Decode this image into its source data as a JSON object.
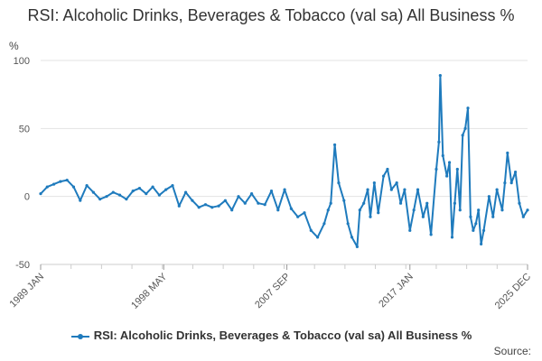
{
  "title": "RSI: Alcoholic Drinks, Beverages & Tobacco (val sa) All Business %",
  "unit_label": "%",
  "legend_label": "RSI: Alcoholic Drinks, Beverages & Tobacco (val sa) All Business %",
  "source_label": "Source:",
  "colors": {
    "series": "#1f7bbd",
    "grid": "#e3e3e3",
    "axis": "#cccccc",
    "tick_text": "#555555"
  },
  "chart_data": {
    "type": "line",
    "title": "RSI: Alcoholic Drinks, Beverages & Tobacco (val sa) All Business %",
    "ylabel": "%",
    "xlim": [
      1989.0,
      2025.92
    ],
    "ylim": [
      -50,
      100
    ],
    "y_ticks": [
      100,
      50,
      0,
      -50
    ],
    "x_ticks": [
      {
        "label": "1989 JAN",
        "x": 1989.0
      },
      {
        "label": "1998 MAY",
        "x": 1998.33
      },
      {
        "label": "2007 SEP",
        "x": 2007.67
      },
      {
        "label": "2017 JAN",
        "x": 2017.0
      },
      {
        "label": "2025 DEC",
        "x": 2025.92
      }
    ],
    "grid": true,
    "legend_position": "bottom",
    "series": [
      {
        "name": "RSI: Alcoholic Drinks, Beverages & Tobacco (val sa) All Business %",
        "x": [
          1989.0,
          1989.5,
          1990.0,
          1990.5,
          1991.0,
          1991.5,
          1992.0,
          1992.5,
          1993.0,
          1993.5,
          1994.0,
          1994.5,
          1995.0,
          1995.5,
          1996.0,
          1996.5,
          1997.0,
          1997.5,
          1998.0,
          1998.5,
          1999.0,
          1999.5,
          2000.0,
          2000.5,
          2001.0,
          2001.5,
          2002.0,
          2002.5,
          2003.0,
          2003.5,
          2004.0,
          2004.5,
          2005.0,
          2005.5,
          2006.0,
          2006.5,
          2007.0,
          2007.5,
          2008.0,
          2008.5,
          2009.0,
          2009.5,
          2010.0,
          2010.5,
          2010.8,
          2011.0,
          2011.3,
          2011.6,
          2012.0,
          2012.3,
          2012.6,
          2013.0,
          2013.2,
          2013.5,
          2013.8,
          2014.0,
          2014.3,
          2014.6,
          2015.0,
          2015.3,
          2015.6,
          2016.0,
          2016.3,
          2016.6,
          2017.0,
          2017.3,
          2017.6,
          2018.0,
          2018.3,
          2018.6,
          2019.0,
          2019.2,
          2019.3,
          2019.5,
          2019.8,
          2020.0,
          2020.2,
          2020.4,
          2020.6,
          2020.8,
          2021.0,
          2021.2,
          2021.4,
          2021.6,
          2021.8,
          2022.0,
          2022.2,
          2022.4,
          2022.6,
          2023.0,
          2023.3,
          2023.6,
          2024.0,
          2024.2,
          2024.4,
          2024.7,
          2025.0,
          2025.3,
          2025.6,
          2025.92
        ],
        "y": [
          2,
          7,
          9,
          11,
          12,
          7,
          -3,
          8,
          3,
          -2,
          0,
          3,
          1,
          -2,
          4,
          6,
          2,
          7,
          1,
          5,
          8,
          -7,
          3,
          -3,
          -8,
          -6,
          -8,
          -7,
          -3,
          -10,
          0,
          -5,
          2,
          -5,
          -6,
          4,
          -10,
          5,
          -9,
          -15,
          -12,
          -25,
          -30,
          -20,
          -10,
          -5,
          38,
          10,
          -3,
          -20,
          -30,
          -37,
          -10,
          -5,
          5,
          -15,
          10,
          -12,
          15,
          20,
          5,
          10,
          -5,
          5,
          -25,
          -10,
          5,
          -15,
          -5,
          -28,
          20,
          40,
          89,
          30,
          15,
          25,
          -30,
          -5,
          20,
          -10,
          45,
          50,
          65,
          -15,
          -25,
          -20,
          -10,
          -35,
          -25,
          0,
          -15,
          5,
          -10,
          10,
          32,
          10,
          18,
          -5,
          -15,
          -10
        ]
      }
    ]
  }
}
